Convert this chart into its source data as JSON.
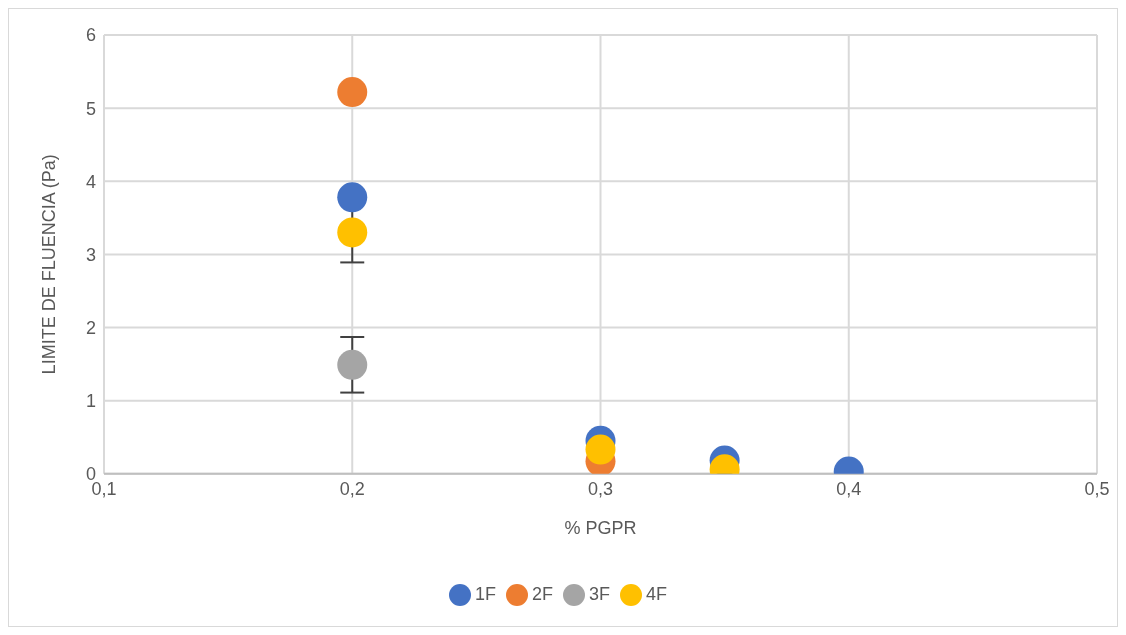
{
  "chart_data": {
    "type": "scatter",
    "xlabel": "% PGPR",
    "ylabel": "LIMITE DE FLUENCIA (Pa)",
    "xlim": [
      0.1,
      0.5
    ],
    "xticks": [
      {
        "value": 0.1,
        "label": "0,1"
      },
      {
        "value": 0.2,
        "label": "0,2"
      },
      {
        "value": 0.3,
        "label": "0,3"
      },
      {
        "value": 0.4,
        "label": "0,4"
      },
      {
        "value": 0.5,
        "label": "0,5"
      }
    ],
    "ylim": [
      0,
      6
    ],
    "yticks": [
      0,
      1,
      2,
      3,
      4,
      5,
      6
    ],
    "grid": true,
    "legend": "bottom",
    "marker": "circle",
    "series": [
      {
        "name": "1F",
        "color": "#4472c4",
        "x": [
          0.2,
          0.3,
          0.35,
          0.4
        ],
        "values": [
          3.78,
          0.45,
          0.18,
          0.03
        ]
      },
      {
        "name": "2F",
        "color": "#ed7d31",
        "x": [
          0.2,
          0.3
        ],
        "values": [
          5.22,
          0.17
        ]
      },
      {
        "name": "3F",
        "color": "#a5a5a5",
        "x": [
          0.2
        ],
        "values": [
          1.49
        ],
        "errors": [
          0.38
        ]
      },
      {
        "name": "4F",
        "color": "#ffc000",
        "x": [
          0.2,
          0.3,
          0.35
        ],
        "values": [
          3.3,
          0.33,
          0.06
        ],
        "errors": [
          0.41,
          null,
          null
        ]
      }
    ]
  }
}
